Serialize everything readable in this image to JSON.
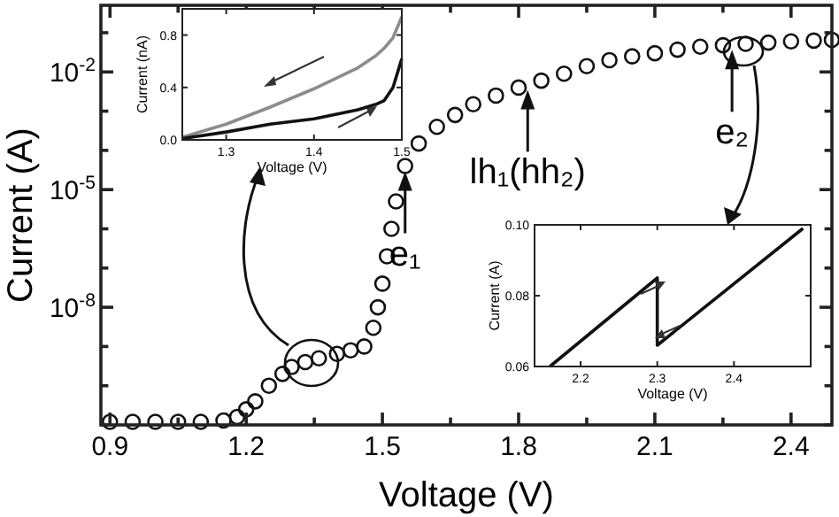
{
  "chart_data": [
    {
      "type": "scatter",
      "xlabel": "Voltage (V)",
      "ylabel": "Current (A)",
      "log": "y",
      "marker": "circle",
      "xlim": [
        0.88,
        2.49
      ],
      "ylim": [
        1e-11,
        0.5
      ],
      "xticks": [
        0.9,
        {
          "value": 1.05,
          "label": null
        },
        1.2,
        {
          "value": 1.35,
          "label": null
        },
        1.5,
        {
          "value": 1.65,
          "label": null
        },
        1.8,
        {
          "value": 1.95,
          "label": null
        },
        2.1,
        {
          "value": 2.25,
          "label": null
        },
        2.4
      ],
      "yticks": [
        {
          "value": 1e-11,
          "label": null
        },
        {
          "value": 1e-10,
          "label": null
        },
        {
          "value": 1e-09,
          "label": null
        },
        {
          "value": 1e-08,
          "label": "10$^{-8}$"
        },
        {
          "value": 1e-07,
          "label": null
        },
        {
          "value": 1e-06,
          "label": null
        },
        {
          "value": 1e-05,
          "label": "10$^{-5}$"
        },
        {
          "value": 0.0001,
          "label": null
        },
        {
          "value": 0.001,
          "label": null
        },
        {
          "value": 0.01,
          "label": "10$^{-2}$"
        },
        {
          "value": 0.1,
          "label": null
        }
      ],
      "x": [
        0.9,
        0.95,
        1.0,
        1.05,
        1.1,
        1.15,
        1.18,
        1.2,
        1.22,
        1.25,
        1.28,
        1.3,
        1.33,
        1.36,
        1.4,
        1.43,
        1.46,
        1.48,
        1.49,
        1.5,
        1.51,
        1.52,
        1.53,
        1.55,
        1.58,
        1.62,
        1.66,
        1.7,
        1.75,
        1.8,
        1.85,
        1.9,
        1.95,
        2.0,
        2.05,
        2.1,
        2.15,
        2.2,
        2.25,
        2.3,
        2.35,
        2.4,
        2.45,
        2.49
      ],
      "series": [
        {
          "color": "#111111",
          "values": [
            1.2e-11,
            1.2e-11,
            1.2e-11,
            1.2e-11,
            1.2e-11,
            1.3e-11,
            1.6e-11,
            2.5e-11,
            4e-11,
            1e-10,
            2e-10,
            3e-10,
            4e-10,
            5e-10,
            6.5e-10,
            8e-10,
            1e-09,
            3e-09,
            1e-08,
            4e-08,
            2e-07,
            1e-06,
            5e-06,
            4e-05,
            0.00015,
            0.0004,
            0.0008,
            0.0015,
            0.0025,
            0.004,
            0.006,
            0.009,
            0.014,
            0.02,
            0.025,
            0.03,
            0.037,
            0.044,
            0.048,
            0.052,
            0.056,
            0.06,
            0.063,
            0.066
          ]
        }
      ],
      "annotations": [
        {
          "text": "e₁",
          "x": 1.55,
          "y": 4e-05
        },
        {
          "text": "lh₁(hh₂)",
          "x": 1.82,
          "y": 0.0048
        },
        {
          "text": "e₂",
          "x": 2.27,
          "y": 0.05
        }
      ]
    },
    {
      "type": "line",
      "xlabel": "Voltage (V)",
      "ylabel": "Current  (nA)",
      "xlim": [
        1.25,
        1.5
      ],
      "ylim": [
        0,
        1.0
      ],
      "xticks": [
        1.3,
        1.4,
        1.5
      ],
      "yticks": [
        {
          "value": 0,
          "label": "0.0"
        },
        0.4,
        0.8
      ],
      "x": [
        1.25,
        1.3,
        1.35,
        1.4,
        1.45,
        1.47,
        1.48,
        1.49,
        1.5
      ],
      "series": [
        {
          "color": "#8c8c8c",
          "values": [
            0.02,
            0.12,
            0.25,
            0.39,
            0.55,
            0.64,
            0.7,
            0.78,
            0.94
          ]
        },
        {
          "color": "#111111",
          "values": [
            0.01,
            0.06,
            0.12,
            0.16,
            0.23,
            0.27,
            0.3,
            0.4,
            0.62
          ]
        }
      ]
    },
    {
      "type": "line",
      "xlabel": "Voltage (V)",
      "ylabel": "Current (A)",
      "xlim": [
        2.14,
        2.5
      ],
      "ylim": [
        0.06,
        0.1
      ],
      "xticks": [
        2.2,
        2.3,
        2.4
      ],
      "yticks": [
        0.06,
        {
          "value": 0.08,
          "label": "0.08"
        },
        {
          "value": 0.1,
          "label": "0.10"
        }
      ],
      "x": [
        2.16,
        2.3,
        2.3,
        2.49
      ],
      "series": [
        {
          "color": "#111111",
          "values": [
            0.06,
            0.085,
            0.066,
            0.099
          ]
        }
      ]
    }
  ]
}
